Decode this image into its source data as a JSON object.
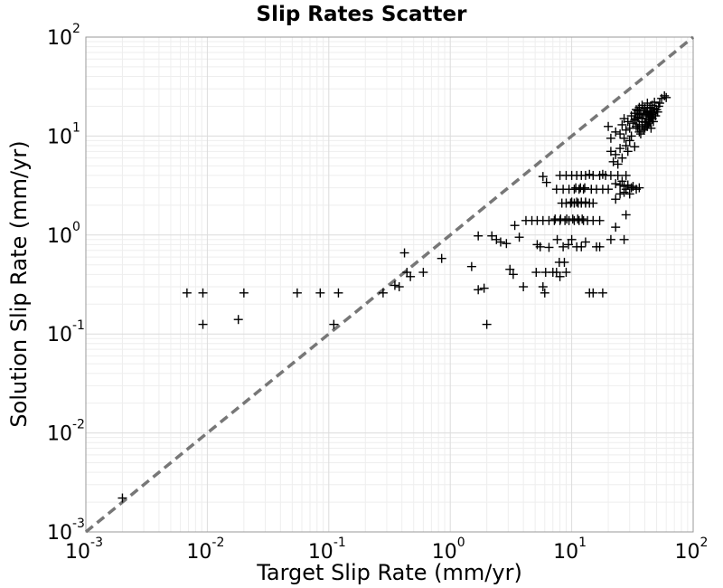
{
  "chart_data": {
    "type": "scatter",
    "title": "Slip Rates Scatter",
    "xlabel": "Target Slip Rate (mm/yr)",
    "ylabel": "Solution Slip Rate (mm/yr)",
    "xscale": "log",
    "yscale": "log",
    "xlim": [
      0.001,
      100
    ],
    "ylim": [
      0.001,
      100
    ],
    "grid": true,
    "marker": "+",
    "marker_color": "#000000",
    "reference_line": {
      "style": "dashed",
      "color": "#777777",
      "from": [
        0.001,
        0.001
      ],
      "to": [
        100,
        100
      ]
    },
    "xticks": [
      {
        "base": "10",
        "exp": "-3",
        "value": 0.001
      },
      {
        "base": "10",
        "exp": "-2",
        "value": 0.01
      },
      {
        "base": "10",
        "exp": "-1",
        "value": 0.1
      },
      {
        "base": "10",
        "exp": "0",
        "value": 1
      },
      {
        "base": "10",
        "exp": "1",
        "value": 10
      },
      {
        "base": "10",
        "exp": "2",
        "value": 100
      }
    ],
    "yticks": [
      {
        "base": "10",
        "exp": "-3",
        "value": 0.001
      },
      {
        "base": "10",
        "exp": "-2",
        "value": 0.01
      },
      {
        "base": "10",
        "exp": "-1",
        "value": 0.1
      },
      {
        "base": "10",
        "exp": "0",
        "value": 1
      },
      {
        "base": "10",
        "exp": "1",
        "value": 10
      },
      {
        "base": "10",
        "exp": "2",
        "value": 100
      }
    ],
    "points": [
      [
        0.002,
        0.0022
      ],
      [
        0.0068,
        0.26
      ],
      [
        0.0092,
        0.26
      ],
      [
        0.0092,
        0.125
      ],
      [
        0.02,
        0.26
      ],
      [
        0.018,
        0.14
      ],
      [
        0.055,
        0.26
      ],
      [
        0.085,
        0.26
      ],
      [
        0.12,
        0.26
      ],
      [
        0.11,
        0.125
      ],
      [
        0.28,
        0.26
      ],
      [
        0.35,
        0.31
      ],
      [
        0.38,
        0.3
      ],
      [
        0.42,
        0.66
      ],
      [
        0.44,
        0.42
      ],
      [
        0.47,
        0.38
      ],
      [
        0.6,
        0.42
      ],
      [
        0.85,
        0.58
      ],
      [
        1.5,
        0.48
      ],
      [
        1.7,
        0.98
      ],
      [
        1.7,
        0.28
      ],
      [
        1.9,
        0.29
      ],
      [
        2.0,
        0.125
      ],
      [
        2.2,
        0.98
      ],
      [
        2.4,
        0.9
      ],
      [
        2.6,
        0.85
      ],
      [
        2.9,
        0.82
      ],
      [
        3.1,
        0.45
      ],
      [
        3.3,
        0.4
      ],
      [
        3.4,
        1.25
      ],
      [
        3.7,
        0.95
      ],
      [
        4.0,
        0.3
      ],
      [
        4.2,
        1.4
      ],
      [
        4.7,
        1.4
      ],
      [
        5.1,
        0.42
      ],
      [
        5.2,
        0.8
      ],
      [
        5.5,
        0.76
      ],
      [
        5.8,
        0.3
      ],
      [
        6.0,
        0.26
      ],
      [
        6.1,
        0.42
      ],
      [
        6.5,
        0.75
      ],
      [
        7.0,
        0.42
      ],
      [
        7.5,
        0.42
      ],
      [
        7.6,
        0.9
      ],
      [
        7.9,
        0.53
      ],
      [
        8.0,
        0.38
      ],
      [
        8.5,
        0.76
      ],
      [
        8.7,
        0.53
      ],
      [
        9.0,
        0.42
      ],
      [
        9.4,
        0.8
      ],
      [
        10.0,
        0.9
      ],
      [
        11.0,
        0.76
      ],
      [
        12.0,
        0.76
      ],
      [
        13.0,
        0.85
      ],
      [
        14.0,
        0.26
      ],
      [
        15.0,
        0.26
      ],
      [
        16.0,
        0.76
      ],
      [
        17.0,
        0.76
      ],
      [
        18.0,
        0.26
      ],
      [
        21.0,
        0.9
      ],
      [
        27.0,
        0.9
      ],
      [
        5.2,
        1.4
      ],
      [
        5.8,
        1.4
      ],
      [
        6.5,
        1.4
      ],
      [
        7.2,
        1.4
      ],
      [
        8.0,
        1.4
      ],
      [
        8.8,
        1.4
      ],
      [
        9.5,
        1.4
      ],
      [
        10.5,
        1.4
      ],
      [
        11.5,
        1.4
      ],
      [
        12.5,
        1.4
      ],
      [
        13.5,
        1.4
      ],
      [
        15.0,
        1.4
      ],
      [
        17.0,
        1.4
      ],
      [
        7.3,
        1.45
      ],
      [
        8.1,
        1.45
      ],
      [
        9.1,
        1.45
      ],
      [
        10.2,
        1.45
      ],
      [
        11.2,
        1.45
      ],
      [
        12.2,
        1.45
      ],
      [
        8.3,
        2.1
      ],
      [
        9.0,
        2.1
      ],
      [
        9.8,
        2.1
      ],
      [
        10.5,
        2.1
      ],
      [
        11.3,
        2.1
      ],
      [
        12.0,
        2.1
      ],
      [
        13.0,
        2.1
      ],
      [
        14.0,
        2.1
      ],
      [
        15.0,
        2.1
      ],
      [
        10.0,
        2.15
      ],
      [
        11.0,
        2.15
      ],
      [
        12.0,
        2.15
      ],
      [
        13.0,
        2.15
      ],
      [
        7.5,
        2.9
      ],
      [
        8.5,
        2.9
      ],
      [
        9.5,
        2.9
      ],
      [
        10.5,
        2.9
      ],
      [
        11.5,
        2.9
      ],
      [
        12.5,
        2.9
      ],
      [
        14.5,
        2.9
      ],
      [
        16.0,
        2.9
      ],
      [
        18.0,
        2.9
      ],
      [
        20.0,
        2.9
      ],
      [
        10.8,
        3.0
      ],
      [
        11.8,
        3.0
      ],
      [
        12.8,
        3.0
      ],
      [
        8.0,
        4.0
      ],
      [
        9.0,
        4.0
      ],
      [
        10.0,
        4.0
      ],
      [
        11.0,
        4.0
      ],
      [
        12.0,
        4.0
      ],
      [
        13.0,
        4.0
      ],
      [
        15.0,
        4.0
      ],
      [
        17.0,
        4.0
      ],
      [
        19.0,
        4.0
      ],
      [
        21.0,
        4.0
      ],
      [
        24.0,
        4.0
      ],
      [
        28.0,
        4.0
      ],
      [
        14.0,
        4.1
      ],
      [
        18.0,
        4.1
      ],
      [
        5.8,
        3.9
      ],
      [
        6.2,
        3.4
      ],
      [
        23.0,
        1.2
      ],
      [
        23.0,
        2.3
      ],
      [
        23.0,
        3.3
      ],
      [
        25.0,
        2.6
      ],
      [
        25.0,
        3.2
      ],
      [
        26.0,
        3.5
      ],
      [
        27.0,
        2.7
      ],
      [
        27.0,
        3.1
      ],
      [
        28.0,
        2.9
      ],
      [
        28.0,
        1.6
      ],
      [
        29.0,
        3.2
      ],
      [
        30.0,
        2.6
      ],
      [
        31.0,
        3.0
      ],
      [
        32.0,
        3.1
      ],
      [
        34.0,
        2.9
      ],
      [
        36.0,
        3.0
      ],
      [
        21.0,
        7.0
      ],
      [
        22.0,
        5.5
      ],
      [
        23.0,
        6.5
      ],
      [
        24.0,
        5.2
      ],
      [
        25.0,
        7.5
      ],
      [
        26.0,
        6.0
      ],
      [
        27.0,
        9.5
      ],
      [
        28.0,
        8.0
      ],
      [
        29.0,
        7.0
      ],
      [
        30.0,
        9.0
      ],
      [
        31.0,
        10.0
      ],
      [
        33.0,
        7.8
      ],
      [
        21.0,
        9.5
      ],
      [
        20.0,
        12.5
      ],
      [
        23.0,
        11.0
      ],
      [
        25.0,
        10.5
      ],
      [
        26.0,
        13.0
      ],
      [
        27.0,
        15.0
      ],
      [
        28.0,
        11.5
      ],
      [
        29.0,
        14.0
      ],
      [
        30.0,
        12.0
      ],
      [
        31.0,
        16.0
      ],
      [
        32.0,
        13.5
      ],
      [
        33.0,
        14.5
      ],
      [
        34.0,
        12.5
      ],
      [
        35.0,
        15.5
      ],
      [
        36.0,
        13.0
      ],
      [
        37.0,
        17.0
      ],
      [
        38.0,
        14.0
      ],
      [
        39.0,
        16.5
      ],
      [
        40.0,
        13.8
      ],
      [
        41.0,
        15.0
      ],
      [
        42.0,
        17.5
      ],
      [
        43.0,
        14.5
      ],
      [
        44.0,
        16.0
      ],
      [
        45.0,
        18.0
      ],
      [
        46.0,
        15.0
      ],
      [
        47.0,
        17.0
      ],
      [
        48.0,
        19.0
      ],
      [
        50.0,
        18.5
      ],
      [
        52.0,
        20.0
      ],
      [
        35.0,
        12.0
      ],
      [
        36.0,
        11.0
      ],
      [
        37.0,
        10.5
      ],
      [
        38.0,
        12.5
      ],
      [
        39.0,
        11.5
      ],
      [
        40.0,
        12.0
      ],
      [
        41.0,
        13.0
      ],
      [
        42.0,
        12.5
      ],
      [
        43.0,
        13.5
      ],
      [
        44.0,
        14.0
      ],
      [
        45.0,
        15.5
      ],
      [
        46.0,
        16.5
      ],
      [
        34.0,
        18.5
      ],
      [
        36.0,
        19.5
      ],
      [
        38.0,
        20.5
      ],
      [
        40.0,
        19.0
      ],
      [
        42.0,
        21.5
      ],
      [
        44.0,
        19.5
      ],
      [
        46.0,
        20.5
      ],
      [
        48.0,
        22.0
      ],
      [
        53.0,
        21.5
      ],
      [
        55.0,
        24.0
      ],
      [
        58.0,
        25.5
      ],
      [
        60.0,
        24.5
      ],
      [
        33.0,
        17.0
      ],
      [
        35.0,
        18.0
      ],
      [
        39.0,
        18.0
      ],
      [
        41.0,
        17.0
      ],
      [
        43.0,
        16.0
      ],
      [
        47.0,
        14.0
      ],
      [
        49.0,
        16.0
      ],
      [
        51.0,
        17.5
      ],
      [
        45.0,
        12.0
      ],
      [
        38.0,
        15.0
      ],
      [
        36.0,
        16.5
      ],
      [
        34.0,
        15.0
      ]
    ]
  }
}
